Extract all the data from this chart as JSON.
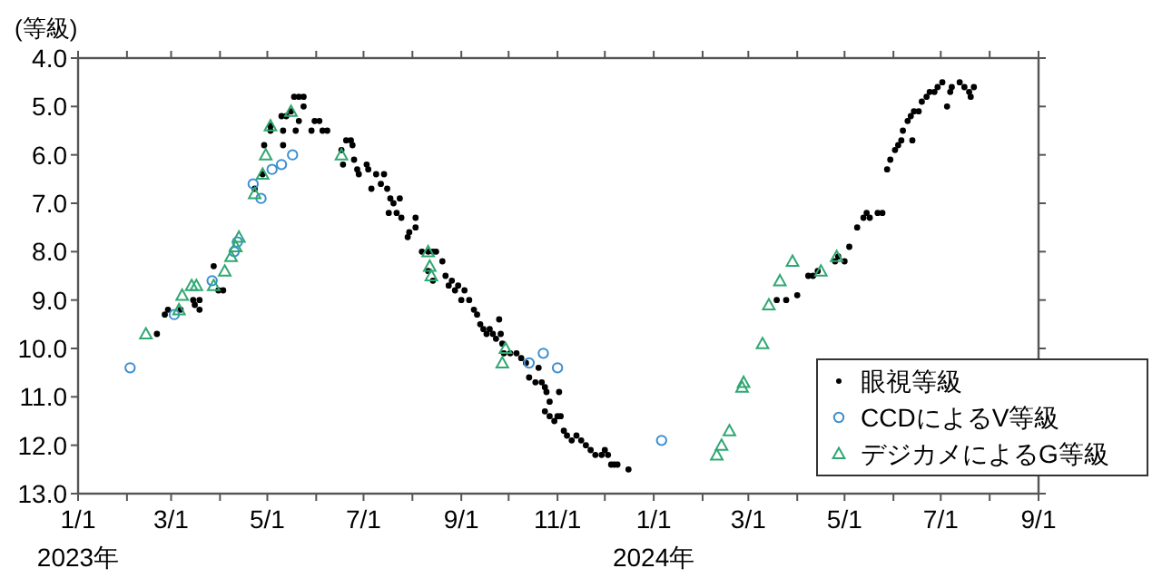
{
  "chart_data": {
    "type": "scatter",
    "ylabel": "(等級)",
    "legend": "bottom right",
    "grid": false,
    "xlim": [
      "2023-01-01",
      "2024-09-01"
    ],
    "xticks": [
      {
        "value": "2023-01-01",
        "label": "1/1\n2023年"
      },
      {
        "value": "2023-02-01",
        "label": null
      },
      {
        "value": "2023-03-01",
        "label": "3/1"
      },
      {
        "value": "2023-04-01",
        "label": null
      },
      {
        "value": "2023-05-01",
        "label": "5/1"
      },
      {
        "value": "2023-06-01",
        "label": null
      },
      {
        "value": "2023-07-01",
        "label": "7/1"
      },
      {
        "value": "2023-08-01",
        "label": null
      },
      {
        "value": "2023-09-01",
        "label": "9/1"
      },
      {
        "value": "2023-10-01",
        "label": null
      },
      {
        "value": "2023-11-01",
        "label": "11/1"
      },
      {
        "value": "2023-12-01",
        "label": null
      },
      {
        "value": "2024-01-01",
        "label": "1/1\n2024年"
      },
      {
        "value": "2024-02-01",
        "label": null
      },
      {
        "value": "2024-03-01",
        "label": "3/1"
      },
      {
        "value": "2024-04-01",
        "label": null
      },
      {
        "value": "2024-05-01",
        "label": "5/1"
      },
      {
        "value": "2024-06-01",
        "label": null
      },
      {
        "value": "2024-07-01",
        "label": "7/1"
      },
      {
        "value": "2024-08-01",
        "label": null
      },
      {
        "value": "2024-09-01",
        "label": "9/1"
      }
    ],
    "ylim": [
      13,
      4
    ],
    "yticks": [
      {
        "value": 4,
        "label": "4.0"
      },
      {
        "value": 5,
        "label": "5.0"
      },
      {
        "value": 6,
        "label": "6.0"
      },
      {
        "value": 7,
        "label": "7.0"
      },
      {
        "value": 8,
        "label": "8.0"
      },
      {
        "value": 9,
        "label": "9.0"
      },
      {
        "value": 10,
        "label": "10.0"
      },
      {
        "value": 11,
        "label": "11.0"
      },
      {
        "value": 12,
        "label": "12.0"
      },
      {
        "value": 13,
        "label": "13.0"
      }
    ],
    "series": [
      {
        "name": "眼視等級",
        "color": "#000000",
        "marker": "circle",
        "x": [
          "2023-02-20",
          "2023-02-25",
          "2023-02-27",
          "2023-03-07",
          "2023-03-15",
          "2023-03-16",
          "2023-03-19",
          "2023-03-19",
          "2023-03-28",
          "2023-03-31",
          "2023-04-03",
          "2023-04-23",
          "2023-04-28",
          "2023-04-29",
          "2023-05-03",
          "2023-05-03",
          "2023-05-10",
          "2023-05-11",
          "2023-05-11",
          "2023-05-13",
          "2023-05-16",
          "2023-05-18",
          "2023-05-19",
          "2023-05-21",
          "2023-05-21",
          "2023-05-24",
          "2023-05-24",
          "2023-05-29",
          "2023-05-31",
          "2023-06-03",
          "2023-06-05",
          "2023-06-08",
          "2023-06-17",
          "2023-06-18",
          "2023-06-20",
          "2023-06-23",
          "2023-06-24",
          "2023-06-25",
          "2023-06-27",
          "2023-06-28",
          "2023-07-03",
          "2023-07-04",
          "2023-07-06",
          "2023-07-09",
          "2023-07-12",
          "2023-07-14",
          "2023-07-16",
          "2023-07-17",
          "2023-07-18",
          "2023-07-20",
          "2023-07-22",
          "2023-07-24",
          "2023-07-25",
          "2023-07-29",
          "2023-07-30",
          "2023-08-03",
          "2023-08-03",
          "2023-08-07",
          "2023-08-11",
          "2023-08-11",
          "2023-08-14",
          "2023-08-14",
          "2023-08-16",
          "2023-08-20",
          "2023-08-22",
          "2023-08-24",
          "2023-08-26",
          "2023-08-28",
          "2023-08-30",
          "2023-09-01",
          "2023-09-03",
          "2023-09-06",
          "2023-09-09",
          "2023-09-11",
          "2023-09-13",
          "2023-09-15",
          "2023-09-17",
          "2023-09-19",
          "2023-09-21",
          "2023-09-23",
          "2023-09-25",
          "2023-09-26",
          "2023-09-27",
          "2023-09-28",
          "2023-10-02",
          "2023-10-06",
          "2023-10-09",
          "2023-10-12",
          "2023-10-14",
          "2023-10-18",
          "2023-10-20",
          "2023-10-22",
          "2023-10-24",
          "2023-10-24",
          "2023-10-25",
          "2023-10-27",
          "2023-10-27",
          "2023-10-30",
          "2023-11-01",
          "2023-11-02",
          "2023-11-03",
          "2023-11-05",
          "2023-11-07",
          "2023-11-10",
          "2023-11-13",
          "2023-11-16",
          "2023-11-19",
          "2023-11-22",
          "2023-11-25",
          "2023-11-29",
          "2023-12-01",
          "2023-12-03",
          "2023-12-05",
          "2023-12-07",
          "2023-12-09",
          "2023-12-16",
          "2024-03-19",
          "2024-03-25",
          "2024-04-01",
          "2024-04-08",
          "2024-04-11",
          "2024-04-14",
          "2024-04-25",
          "2024-04-27",
          "2024-05-01",
          "2024-05-04",
          "2024-05-09",
          "2024-05-13",
          "2024-05-15",
          "2024-05-17",
          "2024-05-22",
          "2024-05-25",
          "2024-05-28",
          "2024-05-30",
          "2024-06-02",
          "2024-06-04",
          "2024-06-06",
          "2024-06-07",
          "2024-06-10",
          "2024-06-12",
          "2024-06-13",
          "2024-06-14",
          "2024-06-17",
          "2024-06-19",
          "2024-06-22",
          "2024-06-24",
          "2024-06-27",
          "2024-06-29",
          "2024-07-02",
          "2024-07-05",
          "2024-07-07",
          "2024-07-08",
          "2024-07-13",
          "2024-07-16",
          "2024-07-19",
          "2024-07-20",
          "2024-07-22"
        ],
        "values": [
          9.7,
          9.3,
          9.2,
          9.2,
          9.0,
          9.1,
          9.0,
          9.2,
          8.3,
          8.8,
          8.8,
          6.7,
          6.4,
          5.8,
          5.5,
          5.4,
          5.2,
          5.5,
          5.8,
          5.2,
          5.1,
          4.8,
          5.5,
          4.8,
          5.3,
          4.8,
          5.0,
          5.5,
          5.3,
          5.3,
          5.5,
          5.5,
          5.9,
          6.2,
          5.7,
          5.7,
          5.8,
          6.1,
          6.3,
          6.4,
          6.2,
          6.3,
          6.7,
          6.4,
          6.6,
          6.4,
          6.7,
          7.2,
          6.9,
          7.0,
          7.2,
          6.9,
          7.3,
          7.7,
          7.6,
          7.3,
          7.5,
          8.0,
          8.0,
          8.4,
          8.0,
          8.6,
          8.0,
          8.2,
          8.5,
          8.7,
          8.6,
          8.8,
          8.7,
          9.0,
          8.8,
          9.0,
          9.2,
          9.3,
          9.5,
          9.6,
          9.7,
          9.6,
          9.7,
          9.8,
          9.4,
          9.7,
          9.9,
          10.1,
          10.1,
          10.1,
          10.2,
          10.3,
          10.6,
          10.7,
          10.4,
          10.7,
          10.8,
          11.3,
          10.9,
          11.1,
          11.4,
          11.5,
          11.4,
          10.9,
          11.4,
          11.7,
          11.8,
          11.9,
          11.8,
          11.9,
          12.0,
          12.1,
          12.2,
          12.2,
          12.1,
          12.2,
          12.4,
          12.4,
          12.4,
          12.5,
          9.0,
          9.0,
          8.9,
          8.5,
          8.5,
          8.4,
          8.2,
          8.1,
          8.2,
          7.9,
          7.5,
          7.3,
          7.2,
          7.3,
          7.2,
          7.2,
          6.3,
          6.1,
          5.9,
          5.8,
          5.7,
          5.5,
          5.3,
          5.2,
          5.7,
          5.1,
          5.1,
          4.9,
          4.8,
          4.7,
          4.7,
          4.6,
          4.5,
          5.0,
          4.7,
          4.6,
          4.5,
          4.6,
          4.7,
          4.8,
          4.6
        ]
      },
      {
        "name": "CCDによるV等級",
        "color": "#3d8fd1",
        "marker": "circle",
        "x": [
          "2023-02-03",
          "2023-03-03",
          "2023-03-27",
          "2023-04-10",
          "2023-04-12",
          "2023-04-22",
          "2023-04-27",
          "2023-05-04",
          "2023-05-10",
          "2023-05-17",
          "2023-10-14",
          "2023-10-23",
          "2023-11-01",
          "2024-01-06"
        ],
        "values": [
          10.4,
          9.3,
          8.6,
          8.0,
          7.8,
          6.6,
          6.9,
          6.3,
          6.2,
          6.0,
          10.3,
          10.1,
          10.4,
          11.9
        ]
      },
      {
        "name": "デジカメによるG等級",
        "color": "#2fa872",
        "marker": "triangle",
        "x": [
          "2023-02-13",
          "2023-03-06",
          "2023-03-08",
          "2023-03-14",
          "2023-03-17",
          "2023-03-28",
          "2023-04-04",
          "2023-04-08",
          "2023-04-11",
          "2023-04-13",
          "2023-04-23",
          "2023-04-28",
          "2023-04-30",
          "2023-05-03",
          "2023-05-16",
          "2023-06-17",
          "2023-08-11",
          "2023-08-12",
          "2023-08-13",
          "2023-09-27",
          "2023-09-29",
          "2024-02-10",
          "2024-02-13",
          "2024-02-18",
          "2024-02-26",
          "2024-02-27",
          "2024-03-10",
          "2024-03-14",
          "2024-03-21",
          "2024-03-29",
          "2024-04-16",
          "2024-04-26"
        ],
        "values": [
          9.7,
          9.2,
          8.9,
          8.7,
          8.7,
          8.7,
          8.4,
          8.1,
          7.9,
          7.7,
          6.8,
          6.4,
          6.0,
          5.4,
          5.1,
          6.0,
          8.0,
          8.3,
          8.5,
          10.3,
          10.0,
          12.2,
          12.0,
          11.7,
          10.8,
          10.7,
          9.9,
          9.1,
          8.6,
          8.2,
          8.4,
          8.1
        ]
      }
    ]
  }
}
